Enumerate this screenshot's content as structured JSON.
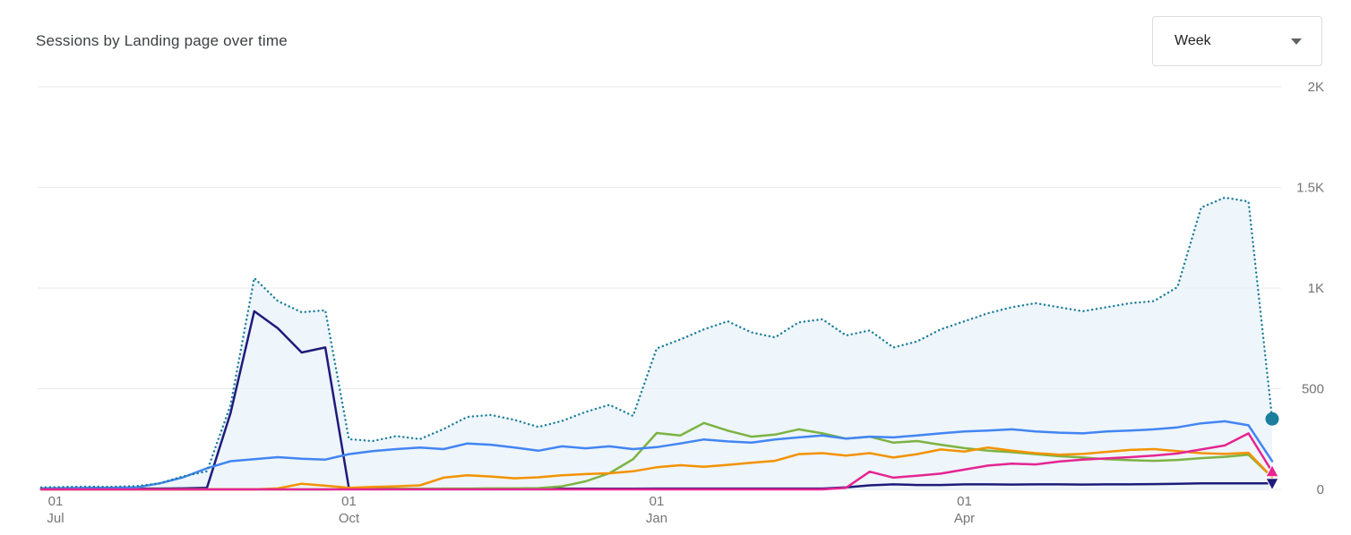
{
  "header": {
    "title": "Sessions by Landing page over time",
    "interval_selector": {
      "value": "Week"
    }
  },
  "chart_data": {
    "type": "line",
    "title": "Sessions by Landing page over time",
    "x_unit": "week",
    "ylim": [
      0,
      2000
    ],
    "grid": true,
    "grid_color": "#e9e9e9",
    "axis_text_color": "#757575",
    "legend_position": "none",
    "y_ticks": [
      {
        "value": 0,
        "label": "0"
      },
      {
        "value": 500,
        "label": "500"
      },
      {
        "value": 1000,
        "label": "1K"
      },
      {
        "value": 1500,
        "label": "1.5K"
      },
      {
        "value": 2000,
        "label": "2K"
      }
    ],
    "x_ticks": [
      {
        "index": 0,
        "line1": "01",
        "line2": "Jul"
      },
      {
        "index": 13,
        "line1": "01",
        "line2": "Oct"
      },
      {
        "index": 26,
        "line1": "01",
        "line2": "Jan"
      },
      {
        "index": 39,
        "line1": "01",
        "line2": "Apr"
      }
    ],
    "series": [
      {
        "name": "total-dotted",
        "style": "dotted",
        "color": "#1b7e9c",
        "area_fill": "#e8f1fa",
        "z": 6,
        "end_marker": "circle",
        "values": [
          10,
          12,
          14,
          13,
          16,
          30,
          65,
          90,
          420,
          1050,
          935,
          880,
          890,
          250,
          240,
          265,
          250,
          300,
          360,
          370,
          345,
          310,
          340,
          385,
          420,
          365,
          700,
          745,
          795,
          835,
          780,
          755,
          830,
          845,
          765,
          790,
          705,
          735,
          795,
          835,
          875,
          905,
          925,
          905,
          885,
          905,
          925,
          935,
          1005,
          1400,
          1450,
          1430,
          350
        ]
      },
      {
        "name": "navy",
        "style": "solid",
        "color": "#1e1b7a",
        "z": 1,
        "end_marker": "triangle-down",
        "values": [
          4,
          4,
          4,
          4,
          4,
          4,
          5,
          8,
          380,
          885,
          800,
          680,
          705,
          5,
          3,
          3,
          3,
          3,
          3,
          3,
          3,
          3,
          3,
          3,
          3,
          3,
          4,
          4,
          4,
          4,
          4,
          4,
          4,
          4,
          10,
          20,
          25,
          22,
          22,
          25,
          25,
          24,
          25,
          25,
          24,
          25,
          25,
          26,
          28,
          30,
          30,
          30,
          30
        ]
      },
      {
        "name": "green",
        "style": "solid",
        "color": "#7CB342",
        "z": 2,
        "end_marker": "none",
        "values": [
          0,
          0,
          0,
          0,
          0,
          0,
          0,
          0,
          0,
          0,
          0,
          0,
          0,
          2,
          2,
          3,
          3,
          4,
          4,
          5,
          5,
          6,
          15,
          40,
          80,
          150,
          280,
          268,
          330,
          292,
          262,
          272,
          298,
          278,
          252,
          262,
          232,
          240,
          222,
          205,
          192,
          185,
          175,
          165,
          158,
          150,
          145,
          142,
          146,
          155,
          162,
          172,
          60
        ]
      },
      {
        "name": "orange",
        "style": "solid",
        "color": "#F39200",
        "z": 3,
        "end_marker": "none",
        "values": [
          0,
          0,
          0,
          0,
          0,
          0,
          0,
          0,
          0,
          0,
          5,
          28,
          18,
          8,
          12,
          15,
          20,
          58,
          70,
          64,
          55,
          60,
          70,
          76,
          80,
          90,
          110,
          120,
          112,
          122,
          132,
          142,
          175,
          180,
          168,
          180,
          158,
          175,
          198,
          188,
          208,
          192,
          180,
          172,
          176,
          186,
          196,
          200,
          190,
          180,
          176,
          182,
          60
        ]
      },
      {
        "name": "blue",
        "style": "solid",
        "color": "#4285F4",
        "z": 4,
        "end_marker": "none",
        "values": [
          5,
          6,
          8,
          8,
          10,
          30,
          60,
          105,
          140,
          150,
          160,
          152,
          148,
          175,
          190,
          200,
          208,
          200,
          228,
          222,
          208,
          192,
          214,
          204,
          214,
          200,
          210,
          228,
          248,
          238,
          232,
          248,
          258,
          268,
          252,
          262,
          258,
          268,
          278,
          288,
          292,
          298,
          288,
          282,
          278,
          288,
          292,
          298,
          308,
          328,
          338,
          318,
          140
        ]
      },
      {
        "name": "pink",
        "style": "solid",
        "color": "#E52592",
        "z": 5,
        "end_marker": "triangle-up",
        "values": [
          0,
          0,
          0,
          0,
          0,
          0,
          0,
          0,
          0,
          0,
          0,
          0,
          0,
          0,
          0,
          0,
          0,
          0,
          0,
          0,
          0,
          0,
          0,
          0,
          0,
          0,
          0,
          0,
          0,
          0,
          0,
          0,
          0,
          0,
          8,
          88,
          58,
          68,
          78,
          98,
          118,
          128,
          124,
          138,
          148,
          154,
          160,
          168,
          178,
          198,
          218,
          278,
          88
        ]
      }
    ]
  }
}
